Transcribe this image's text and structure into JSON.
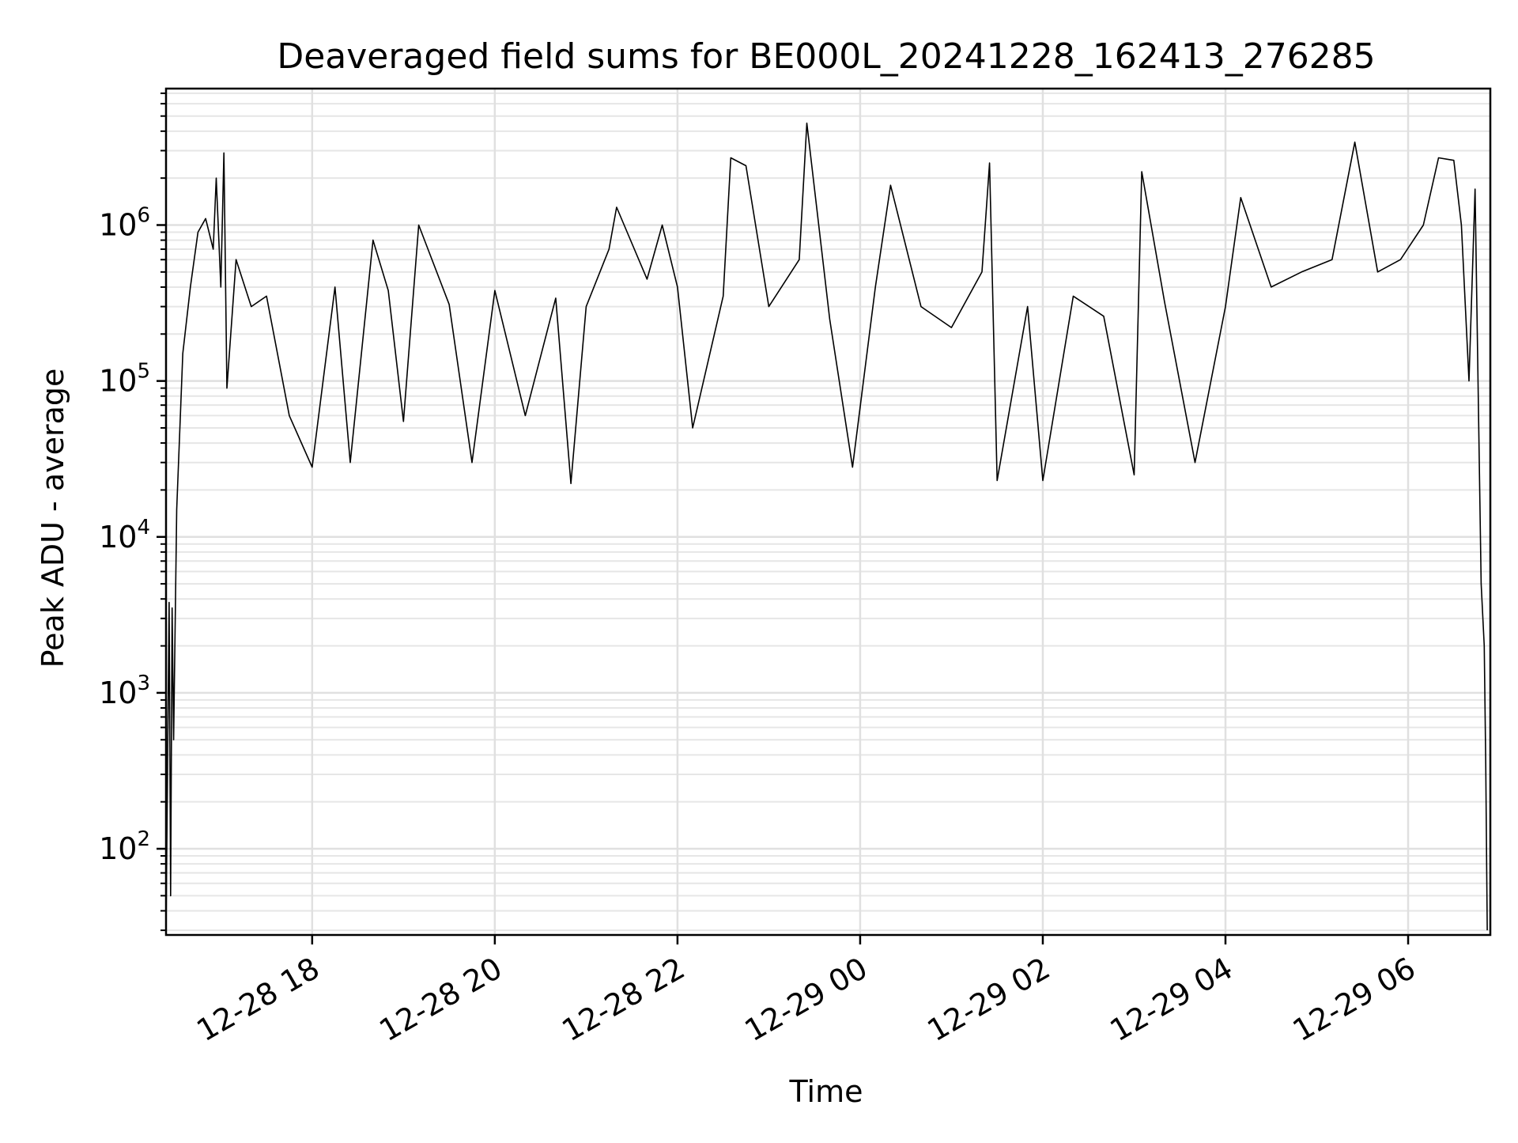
{
  "chart_data": {
    "type": "line",
    "title": "Deaveraged field sums for BE000L_20241228_162413_276285",
    "xlabel": "Time",
    "ylabel": "Peak ADU - average",
    "x_scale": "time",
    "y_scale": "log",
    "xlim": [
      "2024-12-28T16:24",
      "2024-12-29T06:54"
    ],
    "ylim": [
      28,
      7500000
    ],
    "grid": true,
    "x_ticks": [
      {
        "label": "12-28 18",
        "value": "2024-12-28T18:00"
      },
      {
        "label": "12-28 20",
        "value": "2024-12-28T20:00"
      },
      {
        "label": "12-28 22",
        "value": "2024-12-28T22:00"
      },
      {
        "label": "12-29 00",
        "value": "2024-12-29T00:00"
      },
      {
        "label": "12-29 02",
        "value": "2024-12-29T02:00"
      },
      {
        "label": "12-29 04",
        "value": "2024-12-29T04:00"
      },
      {
        "label": "12-29 06",
        "value": "2024-12-29T06:00"
      }
    ],
    "y_ticks": [
      {
        "base": "10",
        "exp": "2",
        "value": 100
      },
      {
        "base": "10",
        "exp": "3",
        "value": 1000
      },
      {
        "base": "10",
        "exp": "4",
        "value": 10000
      },
      {
        "base": "10",
        "exp": "5",
        "value": 100000
      },
      {
        "base": "10",
        "exp": "6",
        "value": 1000000
      }
    ],
    "series": [
      {
        "color": "#000000",
        "points": [
          [
            "2024-12-28T16:24",
            30
          ],
          [
            "2024-12-28T16:26",
            3800
          ],
          [
            "2024-12-28T16:27",
            50
          ],
          [
            "2024-12-28T16:28",
            3500
          ],
          [
            "2024-12-28T16:29",
            500
          ],
          [
            "2024-12-28T16:31",
            15000
          ],
          [
            "2024-12-28T16:35",
            150000
          ],
          [
            "2024-12-28T16:40",
            400000
          ],
          [
            "2024-12-28T16:45",
            900000
          ],
          [
            "2024-12-28T16:50",
            1100000
          ],
          [
            "2024-12-28T16:55",
            700000
          ],
          [
            "2024-12-28T16:57",
            2000000
          ],
          [
            "2024-12-28T17:00",
            400000
          ],
          [
            "2024-12-28T17:02",
            2900000
          ],
          [
            "2024-12-28T17:04",
            90000
          ],
          [
            "2024-12-28T17:10",
            600000
          ],
          [
            "2024-12-28T17:20",
            300000
          ],
          [
            "2024-12-28T17:30",
            350000
          ],
          [
            "2024-12-28T17:45",
            60000
          ],
          [
            "2024-12-28T18:00",
            28000
          ],
          [
            "2024-12-28T18:15",
            400000
          ],
          [
            "2024-12-28T18:25",
            30000
          ],
          [
            "2024-12-28T18:40",
            800000
          ],
          [
            "2024-12-28T18:50",
            380000
          ],
          [
            "2024-12-28T19:00",
            55000
          ],
          [
            "2024-12-28T19:10",
            1000000
          ],
          [
            "2024-12-28T19:30",
            310000
          ],
          [
            "2024-12-28T19:45",
            30000
          ],
          [
            "2024-12-28T20:00",
            380000
          ],
          [
            "2024-12-28T20:20",
            60000
          ],
          [
            "2024-12-28T20:40",
            340000
          ],
          [
            "2024-12-28T20:50",
            22000
          ],
          [
            "2024-12-28T21:00",
            300000
          ],
          [
            "2024-12-28T21:15",
            700000
          ],
          [
            "2024-12-28T21:20",
            1300000
          ],
          [
            "2024-12-28T21:40",
            450000
          ],
          [
            "2024-12-28T21:50",
            1000000
          ],
          [
            "2024-12-28T22:00",
            400000
          ],
          [
            "2024-12-28T22:10",
            50000
          ],
          [
            "2024-12-28T22:30",
            350000
          ],
          [
            "2024-12-28T22:35",
            2700000
          ],
          [
            "2024-12-28T22:45",
            2400000
          ],
          [
            "2024-12-28T23:00",
            300000
          ],
          [
            "2024-12-28T23:20",
            600000
          ],
          [
            "2024-12-28T23:25",
            4500000
          ],
          [
            "2024-12-28T23:40",
            250000
          ],
          [
            "2024-12-28T23:55",
            28000
          ],
          [
            "2024-12-29T00:10",
            400000
          ],
          [
            "2024-12-29T00:20",
            1800000
          ],
          [
            "2024-12-29T00:40",
            300000
          ],
          [
            "2024-12-29T01:00",
            220000
          ],
          [
            "2024-12-29T01:20",
            500000
          ],
          [
            "2024-12-29T01:25",
            2500000
          ],
          [
            "2024-12-29T01:30",
            23000
          ],
          [
            "2024-12-29T01:50",
            300000
          ],
          [
            "2024-12-29T02:00",
            23000
          ],
          [
            "2024-12-29T02:20",
            350000
          ],
          [
            "2024-12-29T02:40",
            260000
          ],
          [
            "2024-12-29T03:00",
            25000
          ],
          [
            "2024-12-29T03:05",
            2200000
          ],
          [
            "2024-12-29T03:20",
            320000
          ],
          [
            "2024-12-29T03:40",
            30000
          ],
          [
            "2024-12-29T04:00",
            300000
          ],
          [
            "2024-12-29T04:10",
            1500000
          ],
          [
            "2024-12-29T04:30",
            400000
          ],
          [
            "2024-12-29T04:50",
            500000
          ],
          [
            "2024-12-29T05:10",
            600000
          ],
          [
            "2024-12-29T05:25",
            3400000
          ],
          [
            "2024-12-29T05:40",
            500000
          ],
          [
            "2024-12-29T05:55",
            600000
          ],
          [
            "2024-12-29T06:10",
            1000000
          ],
          [
            "2024-12-29T06:20",
            2700000
          ],
          [
            "2024-12-29T06:30",
            2600000
          ],
          [
            "2024-12-29T06:35",
            1000000
          ],
          [
            "2024-12-29T06:40",
            100000
          ],
          [
            "2024-12-29T06:44",
            1700000
          ],
          [
            "2024-12-29T06:48",
            5000
          ],
          [
            "2024-12-29T06:50",
            2000
          ],
          [
            "2024-12-29T06:51",
            350
          ],
          [
            "2024-12-29T06:52",
            30
          ]
        ]
      }
    ]
  }
}
